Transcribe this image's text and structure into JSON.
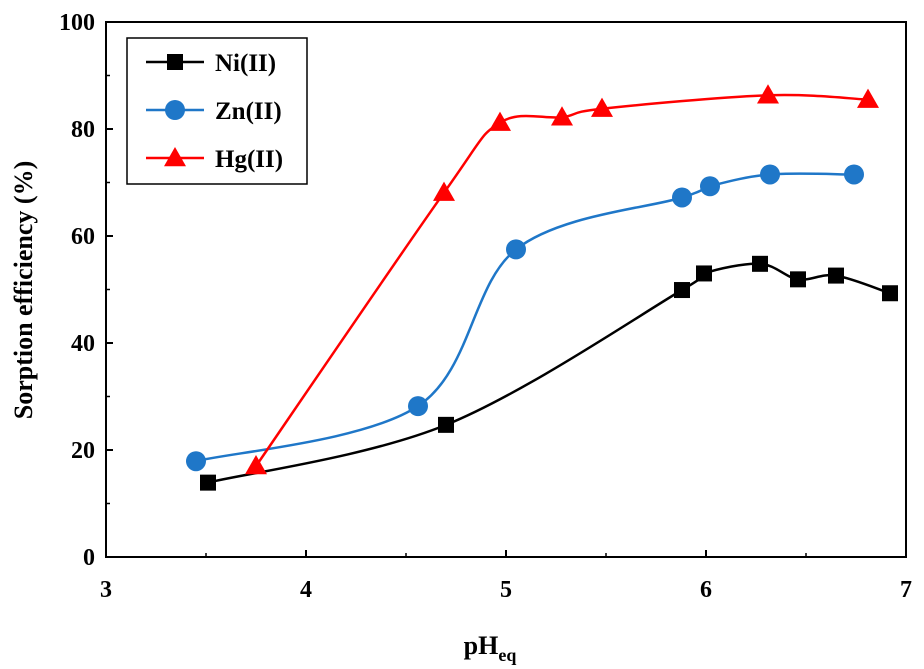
{
  "chart_data": {
    "type": "line",
    "title": "",
    "xlabel": "pH",
    "xlabel_subscript": "eq",
    "ylabel": "Sorption efficiency (%)",
    "xlim": [
      3,
      7
    ],
    "ylim": [
      0,
      100
    ],
    "xticks": [
      3,
      4,
      5,
      6,
      7
    ],
    "yticks": [
      0,
      20,
      40,
      60,
      80,
      100
    ],
    "grid": false,
    "legend_position": "top-left",
    "series": [
      {
        "name": "Ni(II)",
        "color": "#000000",
        "marker": "square",
        "x": [
          3.51,
          4.7,
          5.88,
          5.99,
          6.27,
          6.46,
          6.65,
          6.92
        ],
        "y": [
          13.9,
          24.7,
          49.9,
          53.0,
          54.8,
          51.9,
          52.6,
          49.3
        ]
      },
      {
        "name": "Zn(II)",
        "color": "#1f77c8",
        "marker": "circle",
        "x": [
          3.45,
          4.56,
          5.05,
          5.88,
          6.02,
          6.32,
          6.74
        ],
        "y": [
          17.9,
          28.2,
          57.5,
          67.2,
          69.3,
          71.5,
          71.5
        ]
      },
      {
        "name": "Hg(II)",
        "color": "#ff0000",
        "marker": "triangle",
        "x": [
          3.75,
          4.69,
          4.97,
          5.28,
          5.48,
          6.31,
          6.81
        ],
        "y": [
          17.0,
          68.1,
          81.2,
          82.2,
          83.8,
          86.3,
          85.5
        ]
      }
    ]
  }
}
